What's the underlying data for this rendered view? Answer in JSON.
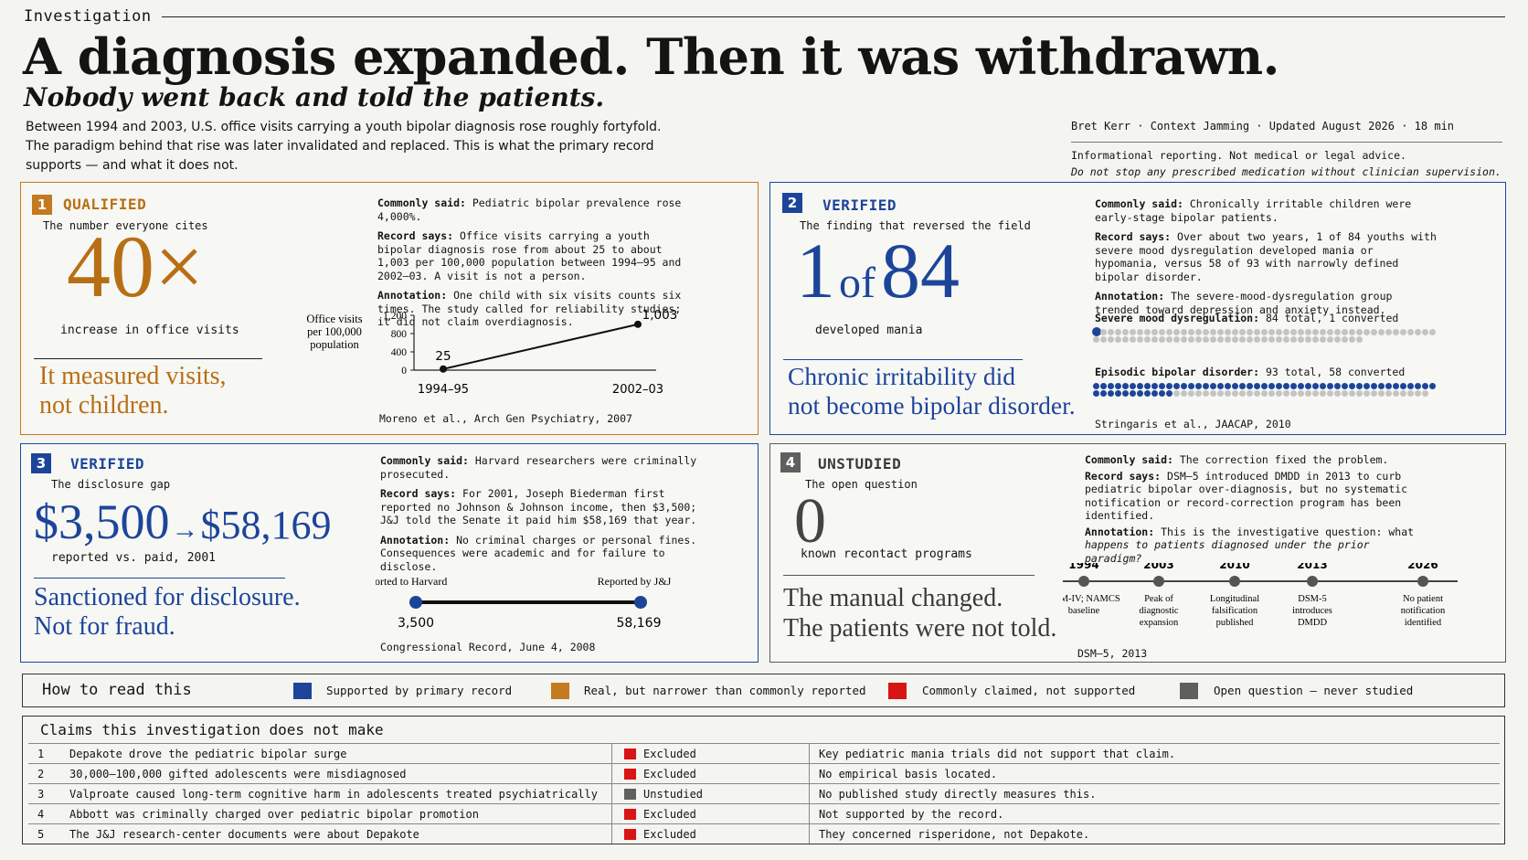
{
  "header": {
    "kicker": "Investigation",
    "headline": "A diagnosis expanded. Then it was withdrawn.",
    "subhead": "Nobody went back and told the patients.",
    "dek": "Between 1994 and 2003, U.S. office visits carrying a youth bipolar diagnosis rose roughly fortyfold. The paradigm behind that rise was later invalidated and replaced. This is what the primary record supports — and what it does not.",
    "byline": "Bret Kerr  ·  Context Jamming  · Updated August 2026  · 18 min",
    "disclaimer_1": "Informational reporting. Not medical or legal advice.",
    "disclaimer_2": "Do not stop any prescribed medication without clinician supervision."
  },
  "colors": {
    "supported": "#1c459a",
    "narrower": "#c47a1e",
    "not_supported": "#d81414",
    "open": "#5f5f5f"
  },
  "panels": {
    "p1": {
      "number": "1",
      "status": "QUALIFIED",
      "caption": "The number everyone cites",
      "big": "40×",
      "big_label": "increase in office visits",
      "conclusion_1": "It measured visits,",
      "conclusion_2": "not children.",
      "said_label": "Commonly said:",
      "said": "Pediatric bipolar prevalence rose 4,000%.",
      "record_label": "Record says:",
      "record": "Office visits carrying a youth bipolar diagnosis rose from about 25 to about 1,003 per 100,000 population between 1994–95 and 2002–03.  A visit is not a person.",
      "annotation_label": "Annotation:",
      "annotation": "One child with six visits counts six times. The study called for reliability studies; it did not claim overdiagnosis.",
      "citation": "Moreno et al.,  Arch Gen Psychiatry, 2007"
    },
    "p2": {
      "number": "2",
      "status": "VERIFIED",
      "caption": "The finding that reversed the field",
      "big_a": "1",
      "big_of": "of",
      "big_b": "84",
      "big_label": "developed mania",
      "conclusion_1": "Chronic irritability did",
      "conclusion_2": "not become bipolar disorder.",
      "said_label": "Commonly said:",
      "said": "Chronically irritable children were early-stage bipolar patients.",
      "record_label": "Record says:",
      "record": "Over about two years, 1 of 84 youths with severe mood dysregulation developed mania or hypomania, versus 58 of 93 with narrowly defined bipolar disorder.",
      "annotation_label": "Annotation:",
      "annotation": "The severe-mood-dysregulation group trended toward depression and anxiety instead.",
      "group1_label": "Severe mood dysregulation:",
      "group1_note": "84 total, 1 converted",
      "group2_label": "Episodic bipolar disorder:",
      "group2_note": "93 total, 58 converted",
      "citation": "Stringaris et al., JAACAP, 2010"
    },
    "p3": {
      "number": "3",
      "status": "VERIFIED",
      "caption": "The disclosure gap",
      "big_a": "$3,500",
      "arrow": "→",
      "big_b": "$58,169",
      "big_label": "reported vs. paid, 2001",
      "conclusion_1": "Sanctioned for disclosure.",
      "conclusion_2": "Not for fraud.",
      "said_label": "Commonly said:",
      "said": "Harvard researchers were criminally prosecuted.",
      "record_label": "Record says:",
      "record": "For 2001, Joseph Biederman first reported no Johnson & Johnson income, then $3,500; J&J told the Senate it paid him $58,169 that year.",
      "annotation_label": "Annotation:",
      "annotation": "No criminal charges or personal fines. Consequences were academic and for failure to disclose.",
      "citation": "Congressional Record, June 4, 2008"
    },
    "p4": {
      "number": "4",
      "status": "UNSTUDIED",
      "caption": "The open question",
      "big": "0",
      "big_label": "known recontact programs",
      "conclusion_1": "The manual changed.",
      "conclusion_2": "The patients were not told.",
      "said_label": "Commonly said:",
      "said": "The correction fixed the problem.",
      "record_label": "Record says:",
      "record": "DSM–5 introduced DMDD in 2013 to curb pediatric bipolar over-diagnosis, but no systematic notification or record-correction program has been identified.",
      "annotation_label": "Annotation:",
      "annotation_plain": "This is the investigative question: what",
      "annotation_italic": "happens to patients diagnosed under the prior paradigm?",
      "citation": "DSM–5, 2013"
    }
  },
  "chart_data": [
    {
      "type": "line",
      "ylabel": "Office visits per 100,000 population",
      "categories": [
        "1994–95",
        "2002–03"
      ],
      "values": [
        25,
        1003
      ],
      "value_labels": [
        "25",
        "1,003"
      ],
      "ylim": [
        0,
        1200
      ],
      "yticks": [
        "0",
        "400",
        "800",
        "1,200"
      ],
      "ytick_values": [
        0,
        400,
        800,
        1200
      ]
    },
    {
      "type": "scatter",
      "series": [
        {
          "name": "Severe mood dysregulation",
          "total": 84,
          "converted": 1
        },
        {
          "name": "Episodic bipolar disorder",
          "total": 93,
          "converted": 58
        }
      ]
    },
    {
      "type": "line",
      "categories": [
        "Reported to Harvard",
        "Reported by J&J"
      ],
      "values": [
        3500,
        58169
      ],
      "value_labels": [
        "3,500",
        "58,169"
      ]
    },
    {
      "type": "line",
      "timeline": [
        {
          "year": "1994",
          "event": "DSM-IV; NAMCS baseline"
        },
        {
          "year": "2003",
          "event": "Peak of diagnostic expansion"
        },
        {
          "year": "2010",
          "event": "Longitudinal falsification published"
        },
        {
          "year": "2013",
          "event": "DSM-5 introduces DMDD"
        },
        {
          "year": "2026",
          "event": "No patient notification identified"
        }
      ]
    }
  ],
  "legend": {
    "title": "How to read this",
    "items": [
      {
        "label": "Supported by primary record",
        "color": "#1c459a"
      },
      {
        "label": "Real, but narrower than commonly reported",
        "color": "#c47a1e"
      },
      {
        "label": "Commonly claimed, not supported",
        "color": "#d81414"
      },
      {
        "label": "Open question — never studied",
        "color": "#5f5f5f"
      }
    ]
  },
  "claims": {
    "title": "Claims this investigation does not make",
    "rows": [
      {
        "n": "1",
        "claim": "Depakote drove the pediatric bipolar surge",
        "status": "Excluded",
        "color": "#d81414",
        "note": "Key pediatric mania trials did not support that claim."
      },
      {
        "n": "2",
        "claim": "30,000–100,000 gifted adolescents were misdiagnosed",
        "status": "Excluded",
        "color": "#d81414",
        "note": "No empirical basis located."
      },
      {
        "n": "3",
        "claim": "Valproate caused long-term cognitive harm in adolescents treated psychiatrically",
        "status": "Unstudied",
        "color": "#5f5f5f",
        "note": "No published study directly measures this."
      },
      {
        "n": "4",
        "claim": "Abbott was criminally charged over pediatric bipolar promotion",
        "status": "Excluded",
        "color": "#d81414",
        "note": "Not supported by the record."
      },
      {
        "n": "5",
        "claim": "The J&J research-center documents were about Depakote",
        "status": "Excluded",
        "color": "#d81414",
        "note": "They concerned risperidone,  not Depakote."
      }
    ]
  }
}
